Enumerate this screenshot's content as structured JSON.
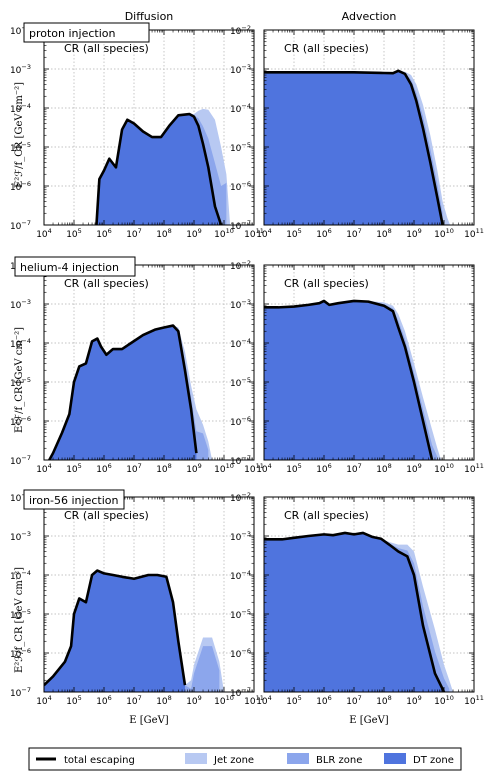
{
  "chart_data": {
    "type": "area",
    "layout": "3 rows x 2 columns",
    "column_titles": [
      "Diffusion",
      "Advection"
    ],
    "xlabel": "E [GeV]",
    "ylabel": "E²ℱ/f_CR [GeV cm⁻²]",
    "xlim": [
      10000,
      100000000000
    ],
    "ylim": [
      1e-07,
      0.01
    ],
    "x_scale": "log",
    "y_scale": "log",
    "grid": true,
    "x_ticks": [
      "10^4",
      "10^5",
      "10^6",
      "10^7",
      "10^8",
      "10^9",
      "10^10",
      "10^11"
    ],
    "y_ticks": [
      "10^-7",
      "10^-6",
      "10^-5",
      "10^-4",
      "10^-3",
      "10^-2"
    ],
    "panel_label": "CR (all species)",
    "legend": {
      "placement": "bottom",
      "entries": [
        "total escaping",
        "Jet zone",
        "BLR zone",
        "DT zone"
      ]
    },
    "colors": {
      "total": "#000000",
      "jet": "#b8c9f2",
      "blr": "#8ca6ec",
      "dt": "#4f74de"
    },
    "rows": [
      {
        "label": "proton injection",
        "panels": [
          {
            "column": "Diffusion",
            "x": [
              560000,
              700000,
              1000000,
              1500000,
              2500000,
              4000000,
              6000000,
              10000000,
              20000000,
              40000000,
              80000000,
              150000000,
              300000000,
              700000000,
              1000000000,
              1400000000,
              2000000000,
              3000000000,
              5000000000,
              8000000000,
              12000000000,
              16000000000
            ],
            "total": [
              1e-07,
              1.5e-06,
              2.5e-06,
              5e-06,
              3e-06,
              2.8e-05,
              5e-05,
              4e-05,
              2.5e-05,
              1.8e-05,
              1.8e-05,
              3.5e-05,
              6.5e-05,
              7e-05,
              6e-05,
              3.5e-05,
              1.2e-05,
              3e-06,
              3e-07,
              1e-07,
              null,
              null
            ],
            "jet": [
              1e-07,
              1.5e-06,
              2.5e-06,
              5e-06,
              3e-06,
              2.8e-05,
              5e-05,
              4e-05,
              2.5e-05,
              1.8e-05,
              1.8e-05,
              3.5e-05,
              6.5e-05,
              7e-05,
              7e-05,
              8.5e-05,
              9.5e-05,
              9e-05,
              5e-05,
              1e-05,
              2e-06,
              1e-07
            ]
          },
          {
            "column": "Advection",
            "x": [
              10000,
              100000,
              1000000,
              10000000,
              100000000,
              200000000,
              300000000,
              500000000,
              800000000,
              1200000000,
              2000000000,
              3500000000,
              6000000000,
              9000000000,
              13000000000,
              16000000000
            ],
            "total": [
              0.00082,
              0.00082,
              0.00082,
              0.00082,
              0.00079,
              0.00078,
              0.0009,
              0.00075,
              0.0004,
              0.00015,
              3e-05,
              4e-06,
              5e-07,
              1e-07,
              null,
              null
            ],
            "jet": [
              0.00082,
              0.00082,
              0.00082,
              0.00082,
              0.00079,
              0.00078,
              0.0009,
              0.00085,
              0.0007,
              0.0004,
              0.00012,
              2e-05,
              2.5e-06,
              4e-07,
              1.5e-07,
              1e-07
            ]
          }
        ]
      },
      {
        "label": "helium-4 injection",
        "panels": [
          {
            "column": "Diffusion",
            "x": [
              15000,
              20000,
              40000,
              70000,
              100000,
              150000,
              250000,
              400000,
              600000,
              800000,
              1200000,
              2000000,
              4000000,
              8000000,
              20000000,
              50000000,
              100000000,
              200000000,
              300000000,
              500000000,
              800000000,
              1200000000,
              2000000000,
              3000000000,
              4000000000
            ],
            "total": [
              1e-07,
              1.5e-07,
              5e-07,
              1.5e-06,
              1e-05,
              2.5e-05,
              3e-05,
              0.00011,
              0.00013,
              8e-05,
              5e-05,
              7e-05,
              7e-05,
              0.0001,
              0.00016,
              0.00022,
              0.00025,
              0.00028,
              0.0002,
              2e-05,
              2e-06,
              1.5e-07,
              null,
              null,
              null
            ],
            "jet": [
              1e-07,
              1.5e-07,
              5e-07,
              1.5e-06,
              1e-05,
              2.5e-05,
              3e-05,
              0.00011,
              0.00013,
              8e-05,
              5e-05,
              7e-05,
              7e-05,
              0.0001,
              0.00016,
              0.00022,
              0.00025,
              0.00028,
              0.00025,
              6e-05,
              8e-06,
              2e-06,
              8e-07,
              3e-07,
              1e-07
            ]
          },
          {
            "column": "Advection",
            "x": [
              10000,
              30000,
              100000,
              300000,
              700000,
              1000000,
              1500000,
              3000000,
              10000000,
              30000000,
              100000000,
              200000000,
              300000000,
              500000000,
              1000000000,
              2000000000,
              4000000000,
              6000000000,
              8000000000
            ],
            "total": [
              0.00082,
              0.00082,
              0.00086,
              0.00095,
              0.00105,
              0.0012,
              0.00095,
              0.00105,
              0.0012,
              0.00115,
              0.0009,
              0.00065,
              0.00025,
              8e-05,
              1e-05,
              1e-06,
              1e-07,
              null,
              null
            ],
            "jet": [
              0.00082,
              0.00082,
              0.00086,
              0.00095,
              0.00105,
              0.0012,
              0.00095,
              0.00105,
              0.0012,
              0.0012,
              0.0011,
              0.0009,
              0.00055,
              0.0002,
              3e-05,
              4e-06,
              6e-07,
              2e-07,
              1e-07
            ]
          }
        ]
      },
      {
        "label": "iron-56 injection",
        "panels": [
          {
            "column": "Diffusion",
            "x": [
              10000,
              20000,
              50000,
              80000,
              100000,
              150000,
              250000,
              400000,
              600000,
              1000000,
              2000000,
              4000000,
              10000000,
              30000000,
              60000000,
              120000000,
              200000000,
              300000000,
              500000000,
              800000000,
              1000000000,
              2000000000,
              4000000000,
              7000000000,
              10000000000
            ],
            "total": [
              1.5e-07,
              2.5e-07,
              6e-07,
              1.5e-06,
              1e-05,
              2.5e-05,
              2e-05,
              0.0001,
              0.00013,
              0.00011,
              0.0001,
              9e-05,
              8e-05,
              0.0001,
              0.0001,
              9e-05,
              2e-05,
              2e-06,
              1.5e-07,
              null,
              null,
              null,
              null,
              null,
              null
            ],
            "jet": [
              1.5e-07,
              2.5e-07,
              6e-07,
              1.5e-06,
              1e-05,
              2.5e-05,
              2e-05,
              0.0001,
              0.00013,
              0.00011,
              0.0001,
              9e-05,
              8e-05,
              0.0001,
              0.0001,
              9e-05,
              2e-05,
              2e-06,
              1.5e-07,
              2e-07,
              5e-07,
              2.5e-06,
              2.5e-06,
              6e-07,
              1e-07
            ]
          },
          {
            "column": "Advection",
            "x": [
              10000,
              40000,
              100000,
              300000,
              1000000,
              2000000,
              5000000,
              10000000,
              20000000,
              40000000,
              80000000,
              150000000,
              300000000,
              600000000,
              1000000000,
              2000000000,
              5000000000,
              10000000000,
              15000000000,
              20000000000
            ],
            "total": [
              0.00082,
              0.00082,
              0.0009,
              0.001,
              0.0011,
              0.00105,
              0.0012,
              0.0011,
              0.0012,
              0.00095,
              0.00085,
              0.0006,
              0.0004,
              0.0003,
              0.0001,
              5e-06,
              3e-07,
              1e-07,
              null,
              null
            ],
            "jet": [
              0.00082,
              0.00082,
              0.0009,
              0.001,
              0.0011,
              0.00105,
              0.0012,
              0.0011,
              0.0012,
              0.00095,
              0.00085,
              0.0007,
              0.0006,
              0.0006,
              0.0004,
              5e-05,
              4e-06,
              5e-07,
              2e-07,
              1e-07
            ]
          }
        ]
      }
    ]
  }
}
